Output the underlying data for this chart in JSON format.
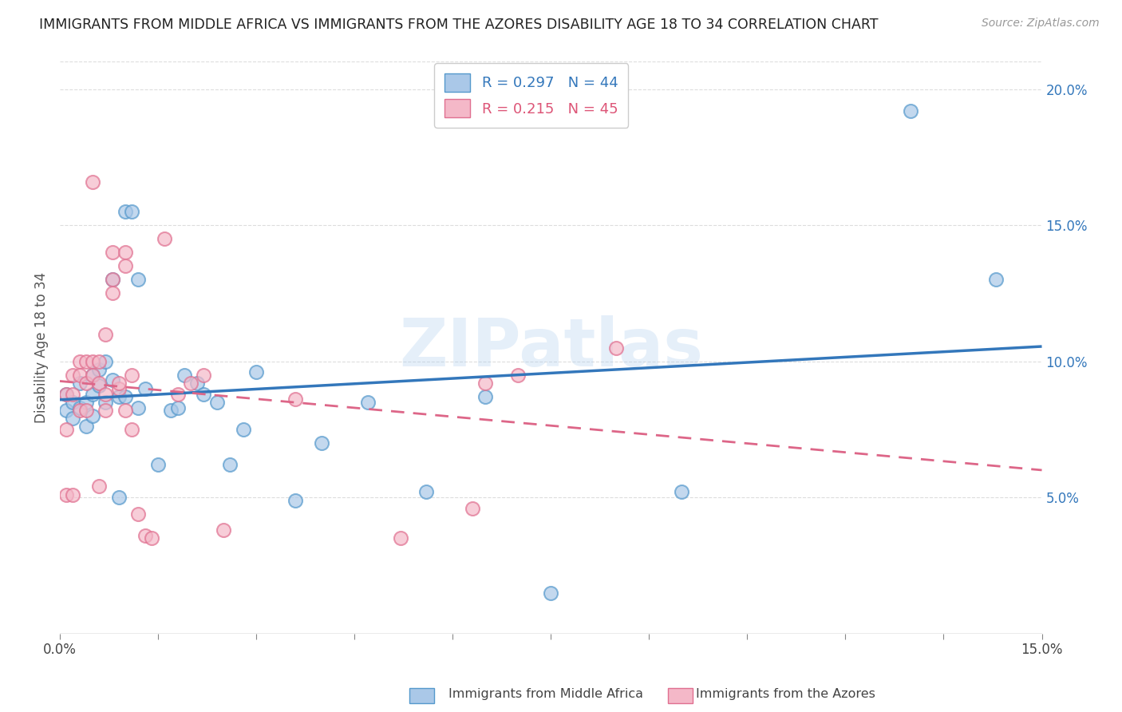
{
  "title": "IMMIGRANTS FROM MIDDLE AFRICA VS IMMIGRANTS FROM THE AZORES DISABILITY AGE 18 TO 34 CORRELATION CHART",
  "source": "Source: ZipAtlas.com",
  "ylabel": "Disability Age 18 to 34",
  "xlim": [
    0.0,
    0.15
  ],
  "ylim": [
    0.0,
    0.21
  ],
  "xtick_left_label": "0.0%",
  "xtick_right_label": "15.0%",
  "yticks_right": [
    0.05,
    0.1,
    0.15,
    0.2
  ],
  "legend_r1": "R = 0.297",
  "legend_n1": "N = 44",
  "legend_r2": "R = 0.215",
  "legend_n2": "N = 45",
  "color_blue_fill": "#aac8e8",
  "color_blue_edge": "#5599cc",
  "color_pink_fill": "#f4b8c8",
  "color_pink_edge": "#e07090",
  "color_blue_line": "#3377bb",
  "color_pink_line": "#dd6688",
  "color_blue_text": "#3377bb",
  "color_pink_text": "#dd5577",
  "watermark": "ZIPatlas",
  "grid_color": "#dddddd",
  "bottom_legend_blue": "Immigrants from Middle Africa",
  "bottom_legend_pink": "Immigrants from the Azores",
  "blue_scatter_x": [
    0.001,
    0.001,
    0.002,
    0.002,
    0.003,
    0.003,
    0.004,
    0.004,
    0.005,
    0.005,
    0.005,
    0.006,
    0.006,
    0.007,
    0.007,
    0.008,
    0.008,
    0.009,
    0.009,
    0.01,
    0.01,
    0.011,
    0.012,
    0.012,
    0.013,
    0.015,
    0.017,
    0.018,
    0.019,
    0.021,
    0.022,
    0.024,
    0.026,
    0.028,
    0.03,
    0.036,
    0.04,
    0.047,
    0.056,
    0.065,
    0.075,
    0.095,
    0.13,
    0.143
  ],
  "blue_scatter_y": [
    0.088,
    0.082,
    0.085,
    0.079,
    0.083,
    0.092,
    0.085,
    0.076,
    0.095,
    0.088,
    0.08,
    0.091,
    0.097,
    0.1,
    0.085,
    0.13,
    0.093,
    0.05,
    0.087,
    0.087,
    0.155,
    0.155,
    0.13,
    0.083,
    0.09,
    0.062,
    0.082,
    0.083,
    0.095,
    0.092,
    0.088,
    0.085,
    0.062,
    0.075,
    0.096,
    0.049,
    0.07,
    0.085,
    0.052,
    0.087,
    0.015,
    0.052,
    0.192,
    0.13
  ],
  "pink_scatter_x": [
    0.001,
    0.001,
    0.001,
    0.002,
    0.002,
    0.002,
    0.003,
    0.003,
    0.003,
    0.004,
    0.004,
    0.004,
    0.005,
    0.005,
    0.005,
    0.006,
    0.006,
    0.006,
    0.007,
    0.007,
    0.007,
    0.008,
    0.008,
    0.008,
    0.009,
    0.009,
    0.01,
    0.01,
    0.01,
    0.011,
    0.011,
    0.012,
    0.013,
    0.014,
    0.016,
    0.018,
    0.02,
    0.022,
    0.025,
    0.036,
    0.052,
    0.063,
    0.065,
    0.07,
    0.085
  ],
  "pink_scatter_y": [
    0.088,
    0.075,
    0.051,
    0.095,
    0.088,
    0.051,
    0.1,
    0.095,
    0.082,
    0.1,
    0.092,
    0.082,
    0.1,
    0.095,
    0.166,
    0.1,
    0.092,
    0.054,
    0.11,
    0.088,
    0.082,
    0.13,
    0.14,
    0.125,
    0.09,
    0.092,
    0.14,
    0.135,
    0.082,
    0.095,
    0.075,
    0.044,
    0.036,
    0.035,
    0.145,
    0.088,
    0.092,
    0.095,
    0.038,
    0.086,
    0.035,
    0.046,
    0.092,
    0.095,
    0.105
  ]
}
